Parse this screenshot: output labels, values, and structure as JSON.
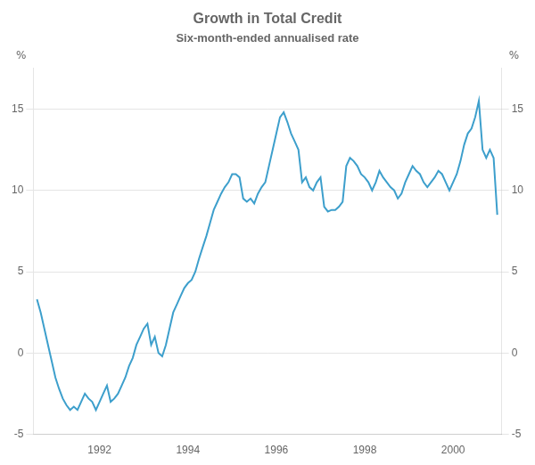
{
  "chart_data": {
    "type": "line",
    "title": "Growth in Total Credit",
    "subtitle": "Six-month-ended annualised rate",
    "ylabel": "%",
    "y2label": "%",
    "color": "#3d9fcc",
    "grid": "y",
    "xlim": [
      1990.5,
      2001.1
    ],
    "xticks": [
      1992,
      1994,
      1996,
      1998,
      2000
    ],
    "ylim": [
      -5,
      17.5
    ],
    "yticks": [
      -5,
      0,
      5,
      10,
      15
    ],
    "y2lim": [
      -5,
      17.5
    ],
    "y2ticks": [
      -5,
      0,
      5,
      10,
      15
    ],
    "x": [
      1990.583,
      1990.667,
      1990.75,
      1990.833,
      1990.917,
      1991.0,
      1991.083,
      1991.167,
      1991.25,
      1991.333,
      1991.417,
      1991.5,
      1991.583,
      1991.667,
      1991.75,
      1991.833,
      1991.917,
      1992.0,
      1992.083,
      1992.167,
      1992.25,
      1992.333,
      1992.417,
      1992.5,
      1992.583,
      1992.667,
      1992.75,
      1992.833,
      1992.917,
      1993.0,
      1993.083,
      1993.167,
      1993.25,
      1993.333,
      1993.417,
      1993.5,
      1993.583,
      1993.667,
      1993.75,
      1993.833,
      1993.917,
      1994.0,
      1994.083,
      1994.167,
      1994.25,
      1994.333,
      1994.417,
      1994.5,
      1994.583,
      1994.667,
      1994.75,
      1994.833,
      1994.917,
      1995.0,
      1995.083,
      1995.167,
      1995.25,
      1995.333,
      1995.417,
      1995.5,
      1995.583,
      1995.667,
      1995.75,
      1995.833,
      1995.917,
      1996.0,
      1996.083,
      1996.167,
      1996.25,
      1996.333,
      1996.417,
      1996.5,
      1996.583,
      1996.667,
      1996.75,
      1996.833,
      1996.917,
      1997.0,
      1997.083,
      1997.167,
      1997.25,
      1997.333,
      1997.417,
      1997.5,
      1997.583,
      1997.667,
      1997.75,
      1997.833,
      1997.917,
      1998.0,
      1998.083,
      1998.167,
      1998.25,
      1998.333,
      1998.417,
      1998.5,
      1998.583,
      1998.667,
      1998.75,
      1998.833,
      1998.917,
      1999.0,
      1999.083,
      1999.167,
      1999.25,
      1999.333,
      1999.417,
      1999.5,
      1999.583,
      1999.667,
      1999.75,
      1999.833,
      1999.917,
      2000.0,
      2000.083,
      2000.167,
      2000.25,
      2000.333,
      2000.417,
      2000.5,
      2000.583,
      2000.667,
      2000.75,
      2000.833,
      2000.917,
      2001.0
    ],
    "values": [
      3.3,
      2.5,
      1.5,
      0.5,
      -0.5,
      -1.5,
      -2.2,
      -2.8,
      -3.2,
      -3.5,
      -3.3,
      -3.5,
      -3.0,
      -2.5,
      -2.8,
      -3.0,
      -3.5,
      -3.0,
      -2.5,
      -2.0,
      -3.0,
      -2.8,
      -2.5,
      -2.0,
      -1.5,
      -0.8,
      -0.3,
      0.5,
      1.0,
      1.5,
      1.8,
      0.5,
      1.0,
      0.0,
      -0.2,
      0.5,
      1.5,
      2.5,
      3.0,
      3.5,
      4.0,
      4.3,
      4.5,
      5.0,
      5.8,
      6.5,
      7.2,
      8.0,
      8.8,
      9.3,
      9.8,
      10.2,
      10.5,
      11.0,
      11.0,
      10.8,
      9.5,
      9.3,
      9.5,
      9.2,
      9.8,
      10.2,
      10.5,
      11.5,
      12.5,
      13.5,
      14.5,
      14.8,
      14.2,
      13.5,
      13.0,
      12.5,
      10.5,
      10.8,
      10.2,
      10.0,
      10.5,
      10.8,
      9.0,
      8.7,
      8.8,
      8.8,
      9.0,
      9.3,
      11.5,
      12.0,
      11.8,
      11.5,
      11.0,
      10.8,
      10.5,
      10.0,
      10.5,
      11.2,
      10.8,
      10.5,
      10.2,
      10.0,
      9.5,
      9.8,
      10.5,
      11.0,
      11.5,
      11.2,
      11.0,
      10.5,
      10.2,
      10.5,
      10.8,
      11.2,
      11.0,
      10.5,
      10.0,
      10.5,
      11.0,
      11.8,
      12.8,
      13.5,
      13.8,
      14.5,
      15.5,
      12.5,
      12.0,
      12.5,
      12.0,
      8.5
    ]
  }
}
